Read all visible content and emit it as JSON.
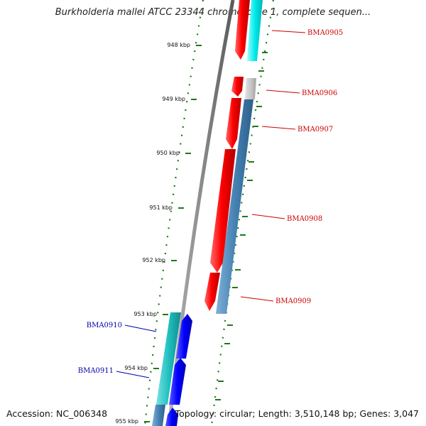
{
  "title": "Burkholderia mallei ATCC 23344 chromosome 1, complete sequen...",
  "footer": {
    "accession": "Accession: NC_006348",
    "summary": "Topology: circular; Length: 3,510,148 bp; Genes: 3,047"
  },
  "colors": {
    "backbone": "#8c8c8c",
    "tick": "#1a7a1a",
    "forward_cds": "#ff0000",
    "forward_rna": "#00e5e5",
    "reverse_cds": "#0000ff",
    "reverse_rna": "#20c0c0",
    "feature_blue": "#4682b4",
    "feature_gray": "#c8c8c8",
    "label_red": "#cc0000",
    "label_blue": "#0000aa"
  },
  "ticks": [
    "948 kbp",
    "949 kbp",
    "950 kbp",
    "951 kbp",
    "952 kbp",
    "953 kbp",
    "954 kbp",
    "955 kbp"
  ],
  "genes": [
    {
      "name": "BMA0905",
      "color": "label_red"
    },
    {
      "name": "BMA0906",
      "color": "label_red"
    },
    {
      "name": "BMA0907",
      "color": "label_red"
    },
    {
      "name": "BMA0908",
      "color": "label_red"
    },
    {
      "name": "BMA0909",
      "color": "label_red"
    },
    {
      "name": "BMA0910",
      "color": "label_blue"
    },
    {
      "name": "BMA0911",
      "color": "label_blue"
    }
  ]
}
